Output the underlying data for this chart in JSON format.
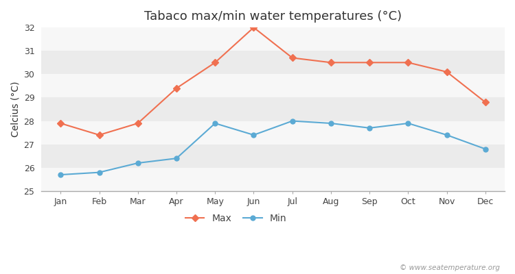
{
  "title": "Tabaco max/min water temperatures (°C)",
  "ylabel": "Celcius (°C)",
  "months": [
    "Jan",
    "Feb",
    "Mar",
    "Apr",
    "May",
    "Jun",
    "Jul",
    "Aug",
    "Sep",
    "Oct",
    "Nov",
    "Dec"
  ],
  "max_temps": [
    27.9,
    27.4,
    27.9,
    29.4,
    30.5,
    32.0,
    30.7,
    30.5,
    30.5,
    30.5,
    30.1,
    28.8
  ],
  "min_temps": [
    25.7,
    25.8,
    26.2,
    26.4,
    27.9,
    27.4,
    28.0,
    27.9,
    27.7,
    27.9,
    27.4,
    26.8
  ],
  "max_color": "#f07050",
  "min_color": "#5baad4",
  "bg_color": "#ffffff",
  "band_light": "#ebebeb",
  "band_dark": "#f7f7f7",
  "ylim": [
    25,
    32
  ],
  "yticks": [
    25,
    26,
    27,
    28,
    29,
    30,
    31,
    32
  ],
  "watermark": "© www.seatemperature.org",
  "title_fontsize": 13,
  "label_fontsize": 10,
  "tick_fontsize": 9,
  "legend_labels": [
    "Max",
    "Min"
  ]
}
